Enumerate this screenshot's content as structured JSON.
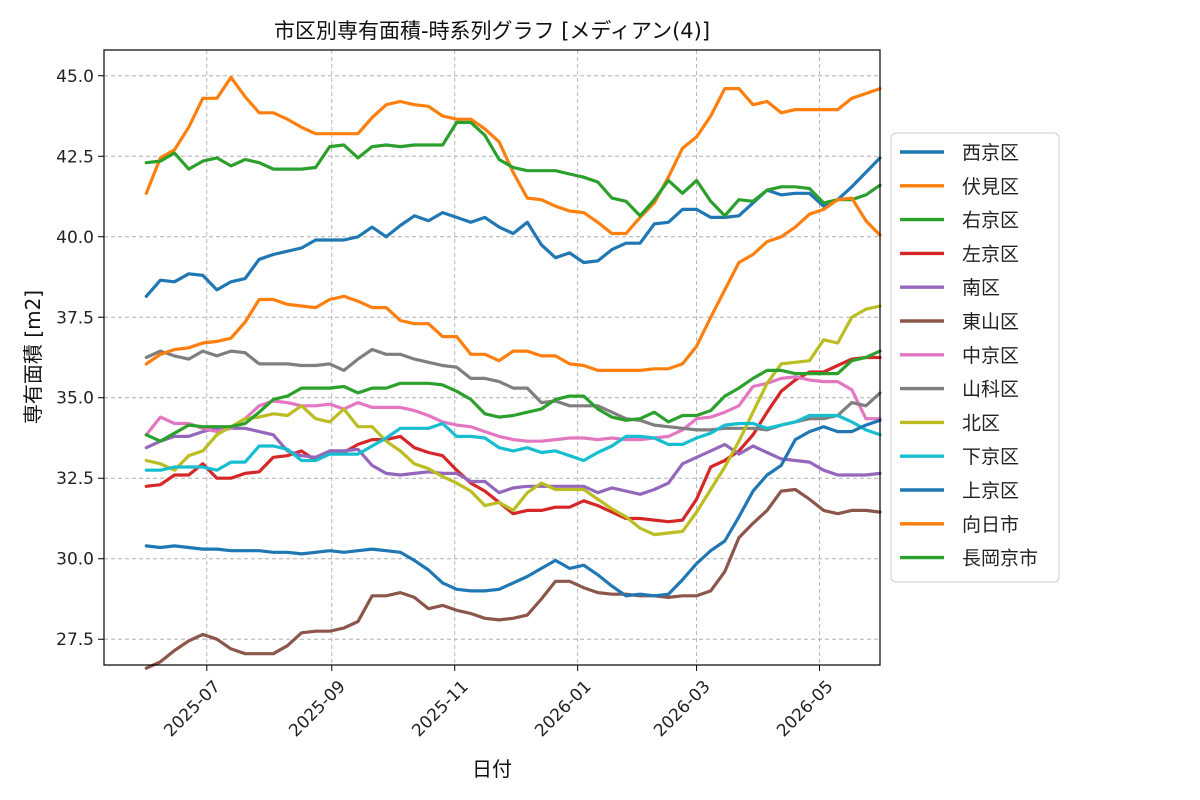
{
  "chart_data": {
    "type": "line",
    "title": "市区別専有面積-時系列グラフ [メディアン(4)]",
    "xlabel": "日付",
    "ylabel": "専有面積 [m2]",
    "xlim": [
      "2025-05-11",
      "2026-05-31"
    ],
    "ylim": [
      26.7,
      45.8
    ],
    "x_ticks": [
      "2025-07-01",
      "2025-09-01",
      "2025-11-01",
      "2026-01-01",
      "2026-03-01",
      "2026-05-01"
    ],
    "x_tick_labels": [
      "2025-07",
      "2025-09",
      "2025-11",
      "2026-01",
      "2026-03",
      "2026-05"
    ],
    "y_ticks": [
      27.5,
      30.0,
      32.5,
      35.0,
      37.5,
      40.0,
      42.5,
      45.0
    ],
    "y_tick_labels": [
      "27.5",
      "30.0",
      "32.5",
      "35.0",
      "37.5",
      "40.0",
      "42.5",
      "45.0"
    ],
    "grid": true,
    "legend_position": "right, outside the plot",
    "x": [
      "2025-06-01",
      "2025-06-08",
      "2025-06-15",
      "2025-06-22",
      "2025-06-29",
      "2025-07-06",
      "2025-07-13",
      "2025-07-20",
      "2025-07-27",
      "2025-08-03",
      "2025-08-10",
      "2025-08-17",
      "2025-08-24",
      "2025-08-31",
      "2025-09-07",
      "2025-09-14",
      "2025-09-21",
      "2025-09-28",
      "2025-10-05",
      "2025-10-12",
      "2025-10-19",
      "2025-10-26",
      "2025-11-02",
      "2025-11-09",
      "2025-11-16",
      "2025-11-23",
      "2025-11-30",
      "2025-12-07",
      "2025-12-14",
      "2025-12-21",
      "2025-12-28",
      "2026-01-04",
      "2026-01-11",
      "2026-01-18",
      "2026-01-25",
      "2026-02-01",
      "2026-02-08",
      "2026-02-15",
      "2026-02-22",
      "2026-03-01",
      "2026-03-08",
      "2026-03-15",
      "2026-03-22",
      "2026-03-29",
      "2026-04-05",
      "2026-04-12",
      "2026-04-19",
      "2026-04-26",
      "2026-05-03",
      "2026-05-10",
      "2026-05-17",
      "2026-05-24",
      "2026-05-31"
    ],
    "series": [
      {
        "name": "西京区",
        "color": "#1f77b4",
        "values": [
          38.15,
          38.65,
          38.6,
          38.85,
          38.8,
          38.35,
          38.6,
          38.7,
          39.3,
          39.45,
          39.55,
          39.65,
          39.9,
          39.9,
          39.9,
          40.0,
          40.3,
          40.0,
          40.35,
          40.65,
          40.5,
          40.75,
          40.6,
          40.45,
          40.6,
          40.3,
          40.1,
          40.45,
          39.75,
          39.35,
          39.5,
          39.2,
          39.25,
          39.6,
          39.8,
          39.8,
          40.4,
          40.45,
          40.85,
          40.85,
          40.6,
          40.6,
          40.65,
          41.05,
          41.45,
          41.3,
          41.35,
          41.35,
          40.95,
          41.15,
          41.55,
          42.0,
          42.45
        ]
      },
      {
        "name": "伏見区",
        "color": "#ff7f0e",
        "values": [
          41.35,
          42.45,
          42.7,
          43.4,
          44.3,
          44.3,
          44.95,
          44.35,
          43.85,
          43.85,
          43.65,
          43.4,
          43.2,
          43.2,
          43.2,
          43.2,
          43.7,
          44.1,
          44.2,
          44.1,
          44.05,
          43.75,
          43.65,
          43.65,
          43.35,
          42.95,
          42.0,
          41.2,
          41.15,
          40.95,
          40.8,
          40.75,
          40.45,
          40.1,
          40.1,
          40.6,
          41.05,
          41.85,
          42.75,
          43.1,
          43.75,
          44.6,
          44.6,
          44.1,
          44.2,
          43.85,
          43.95,
          43.95,
          43.95,
          43.95,
          44.3,
          44.45,
          44.6
        ]
      },
      {
        "name": "右京区",
        "color": "#2ca02c",
        "values": [
          42.3,
          42.35,
          42.6,
          42.1,
          42.35,
          42.45,
          42.2,
          42.4,
          42.3,
          42.1,
          42.1,
          42.1,
          42.15,
          42.8,
          42.85,
          42.45,
          42.8,
          42.85,
          42.8,
          42.85,
          42.85,
          42.85,
          43.55,
          43.55,
          43.15,
          42.4,
          42.15,
          42.05,
          42.05,
          42.05,
          41.95,
          41.85,
          41.7,
          41.2,
          41.1,
          40.65,
          41.15,
          41.75,
          41.35,
          41.75,
          41.1,
          40.65,
          41.15,
          41.1,
          41.45,
          41.55,
          41.55,
          41.5,
          41.05,
          41.15,
          41.15,
          41.3,
          41.6
        ]
      },
      {
        "name": "左京区",
        "color": "#d62728",
        "values": [
          32.25,
          32.3,
          32.6,
          32.6,
          32.95,
          32.5,
          32.5,
          32.65,
          32.7,
          33.15,
          33.2,
          33.35,
          33.05,
          33.3,
          33.3,
          33.55,
          33.7,
          33.7,
          33.8,
          33.45,
          33.3,
          33.2,
          32.75,
          32.35,
          32.1,
          31.75,
          31.4,
          31.5,
          31.5,
          31.6,
          31.6,
          31.8,
          31.65,
          31.45,
          31.25,
          31.25,
          31.2,
          31.15,
          31.2,
          31.85,
          32.85,
          33.05,
          33.35,
          33.85,
          34.55,
          35.2,
          35.55,
          35.8,
          35.8,
          36.0,
          36.2,
          36.25,
          36.25
        ]
      },
      {
        "name": "南区",
        "color": "#9467bd",
        "values": [
          33.45,
          33.65,
          33.8,
          33.8,
          33.95,
          34.05,
          34.05,
          34.05,
          33.95,
          33.85,
          33.35,
          33.2,
          33.15,
          33.35,
          33.35,
          33.4,
          32.9,
          32.65,
          32.6,
          32.65,
          32.7,
          32.65,
          32.65,
          32.4,
          32.4,
          32.05,
          32.2,
          32.25,
          32.25,
          32.25,
          32.25,
          32.25,
          32.05,
          32.2,
          32.1,
          32.0,
          32.15,
          32.35,
          32.95,
          33.15,
          33.35,
          33.55,
          33.25,
          33.5,
          33.3,
          33.1,
          33.05,
          33.0,
          32.75,
          32.6,
          32.6,
          32.6,
          32.65
        ]
      },
      {
        "name": "東山区",
        "color": "#8c564b",
        "values": [
          26.6,
          26.8,
          27.15,
          27.45,
          27.65,
          27.5,
          27.2,
          27.05,
          27.05,
          27.05,
          27.3,
          27.7,
          27.75,
          27.75,
          27.85,
          28.05,
          28.85,
          28.85,
          28.95,
          28.8,
          28.45,
          28.55,
          28.4,
          28.3,
          28.15,
          28.1,
          28.15,
          28.25,
          28.75,
          29.3,
          29.3,
          29.1,
          28.95,
          28.9,
          28.9,
          28.85,
          28.85,
          28.8,
          28.85,
          28.85,
          29.0,
          29.6,
          30.65,
          31.1,
          31.5,
          32.1,
          32.15,
          31.85,
          31.5,
          31.4,
          31.5,
          31.5,
          31.45
        ]
      },
      {
        "name": "中京区",
        "color": "#e377c2",
        "values": [
          33.85,
          34.4,
          34.2,
          34.2,
          34.05,
          33.95,
          34.05,
          34.35,
          34.75,
          34.9,
          34.85,
          34.75,
          34.75,
          34.8,
          34.65,
          34.85,
          34.7,
          34.7,
          34.7,
          34.6,
          34.45,
          34.25,
          34.15,
          34.1,
          33.95,
          33.8,
          33.7,
          33.65,
          33.65,
          33.7,
          33.75,
          33.75,
          33.7,
          33.75,
          33.7,
          33.7,
          33.75,
          33.8,
          34.0,
          34.35,
          34.4,
          34.55,
          34.75,
          35.35,
          35.45,
          35.6,
          35.65,
          35.55,
          35.5,
          35.5,
          35.25,
          34.35,
          34.35
        ]
      },
      {
        "name": "山科区",
        "color": "#7f7f7f",
        "values": [
          36.25,
          36.45,
          36.3,
          36.2,
          36.45,
          36.3,
          36.45,
          36.4,
          36.05,
          36.05,
          36.05,
          36.0,
          36.0,
          36.05,
          35.85,
          36.2,
          36.5,
          36.35,
          36.35,
          36.2,
          36.1,
          36.0,
          35.95,
          35.6,
          35.6,
          35.5,
          35.3,
          35.3,
          34.85,
          34.9,
          34.75,
          34.75,
          34.75,
          34.55,
          34.35,
          34.3,
          34.15,
          34.1,
          34.05,
          34.0,
          34.0,
          34.05,
          34.05,
          34.05,
          34.0,
          34.15,
          34.25,
          34.35,
          34.35,
          34.45,
          34.85,
          34.75,
          35.15
        ]
      },
      {
        "name": "北区",
        "color": "#bcbd22",
        "values": [
          33.05,
          32.95,
          32.75,
          33.2,
          33.35,
          33.85,
          34.1,
          34.35,
          34.4,
          34.5,
          34.45,
          34.75,
          34.35,
          34.25,
          34.65,
          34.1,
          34.1,
          33.65,
          33.35,
          32.95,
          32.8,
          32.55,
          32.35,
          32.1,
          31.65,
          31.75,
          31.5,
          32.05,
          32.35,
          32.15,
          32.15,
          32.15,
          31.85,
          31.55,
          31.3,
          30.95,
          30.75,
          30.8,
          30.85,
          31.45,
          32.15,
          32.85,
          33.65,
          34.55,
          35.45,
          36.05,
          36.1,
          36.15,
          36.8,
          36.7,
          37.5,
          37.75,
          37.85
        ]
      },
      {
        "name": "下京区",
        "color": "#17becf",
        "values": [
          32.75,
          32.75,
          32.85,
          32.85,
          32.85,
          32.75,
          33.0,
          33.0,
          33.5,
          33.5,
          33.4,
          33.05,
          33.05,
          33.25,
          33.25,
          33.25,
          33.5,
          33.75,
          34.05,
          34.05,
          34.05,
          34.2,
          33.8,
          33.8,
          33.75,
          33.45,
          33.35,
          33.45,
          33.3,
          33.35,
          33.2,
          33.05,
          33.3,
          33.5,
          33.8,
          33.8,
          33.75,
          33.55,
          33.55,
          33.75,
          33.9,
          34.15,
          34.2,
          34.2,
          34.05,
          34.15,
          34.25,
          34.45,
          34.45,
          34.45,
          34.25,
          34.0,
          33.85
        ]
      },
      {
        "name": "上京区",
        "color": "#1f77b4",
        "values": [
          30.4,
          30.35,
          30.4,
          30.35,
          30.3,
          30.3,
          30.25,
          30.25,
          30.25,
          30.2,
          30.2,
          30.15,
          30.2,
          30.25,
          30.2,
          30.25,
          30.3,
          30.25,
          30.2,
          29.95,
          29.65,
          29.25,
          29.05,
          29.0,
          29.0,
          29.05,
          29.25,
          29.45,
          29.7,
          29.95,
          29.7,
          29.8,
          29.5,
          29.15,
          28.85,
          28.9,
          28.85,
          28.9,
          29.35,
          29.85,
          30.25,
          30.55,
          31.3,
          32.1,
          32.6,
          32.9,
          33.7,
          33.95,
          34.1,
          33.95,
          33.95,
          34.15,
          34.3
        ]
      },
      {
        "name": "向日市",
        "color": "#ff7f0e",
        "values": [
          36.05,
          36.35,
          36.5,
          36.55,
          36.7,
          36.75,
          36.85,
          37.35,
          38.05,
          38.05,
          37.9,
          37.85,
          37.8,
          38.05,
          38.15,
          38.0,
          37.8,
          37.8,
          37.4,
          37.3,
          37.3,
          36.9,
          36.9,
          36.35,
          36.35,
          36.15,
          36.45,
          36.45,
          36.3,
          36.3,
          36.05,
          36.0,
          35.85,
          35.85,
          35.85,
          35.85,
          35.9,
          35.9,
          36.05,
          36.6,
          37.5,
          38.35,
          39.2,
          39.45,
          39.85,
          40.0,
          40.3,
          40.7,
          40.85,
          41.15,
          41.2,
          40.5,
          40.05
        ]
      },
      {
        "name": "長岡京市",
        "color": "#2ca02c",
        "values": [
          33.85,
          33.65,
          33.9,
          34.15,
          34.1,
          34.1,
          34.1,
          34.2,
          34.55,
          34.95,
          35.05,
          35.3,
          35.3,
          35.3,
          35.35,
          35.15,
          35.3,
          35.3,
          35.45,
          35.45,
          35.45,
          35.4,
          35.2,
          34.95,
          34.5,
          34.4,
          34.45,
          34.55,
          34.65,
          34.95,
          35.05,
          35.05,
          34.65,
          34.4,
          34.3,
          34.35,
          34.55,
          34.25,
          34.45,
          34.45,
          34.6,
          35.05,
          35.3,
          35.6,
          35.85,
          35.85,
          35.75,
          35.75,
          35.75,
          35.75,
          36.15,
          36.25,
          36.45
        ]
      }
    ]
  }
}
